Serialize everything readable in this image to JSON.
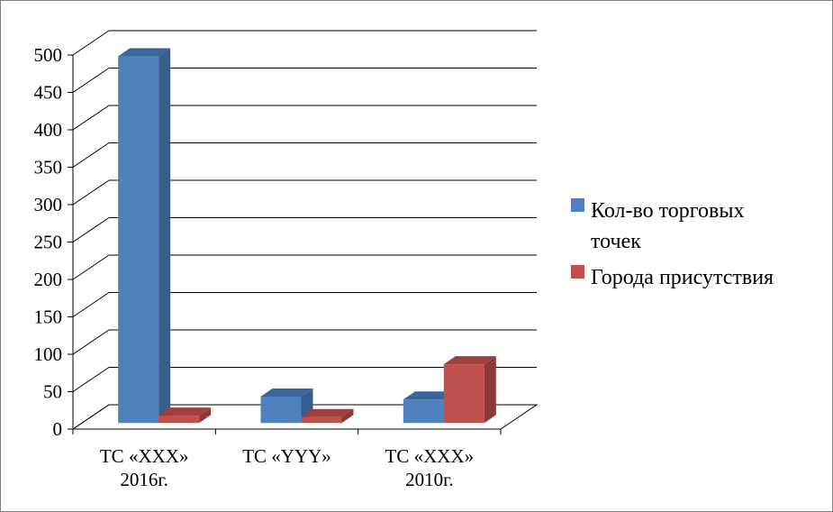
{
  "chart_data": {
    "type": "bar",
    "style": "3d-clustered-column",
    "categories": [
      [
        "ТС «XXX»",
        "2016г."
      ],
      [
        "ТС «YYY»"
      ],
      [
        "ТС «XXX»",
        "2010г."
      ]
    ],
    "series": [
      {
        "name": "Кол-во торговых точек",
        "name_lines": [
          "Кол-во торговых",
          "точек"
        ],
        "values": [
          500,
          36,
          32
        ],
        "color": "#4f81bd",
        "color_dark": "#385d8a",
        "color_top": "#3a669c"
      },
      {
        "name": "Города присутствия",
        "name_lines": [
          "Города присутствия"
        ],
        "values": [
          10,
          8,
          80
        ],
        "color": "#c0504d",
        "color_dark": "#8c3836",
        "color_top": "#a03f3c"
      }
    ],
    "y_ticks": [
      0,
      50,
      100,
      150,
      200,
      250,
      300,
      350,
      400,
      450,
      500
    ],
    "ylim": [
      0,
      500
    ],
    "grid": true,
    "legend_position": "right"
  }
}
